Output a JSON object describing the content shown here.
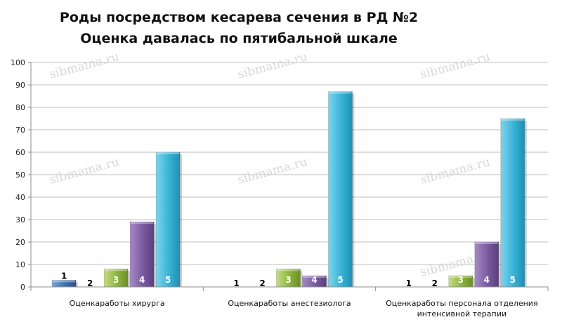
{
  "chart_data": {
    "type": "bar",
    "title": "Роды посредством кесарева сечения в РД №2",
    "subtitle": "Оценка давалась по пятибальной шкале",
    "xlabel": "",
    "ylabel": "",
    "ylim": [
      0,
      100
    ],
    "yticks": [
      0,
      10,
      20,
      30,
      40,
      50,
      60,
      70,
      80,
      90,
      100
    ],
    "grid": true,
    "legend": "none",
    "categories": [
      "Оценкаработы хирурга",
      "Оценкаработы анестезиолога",
      "Оценкаработы персонала отделения интенсивной терапии"
    ],
    "series": [
      {
        "name": "1",
        "color": "#4f81bd",
        "values": [
          3,
          0,
          0
        ]
      },
      {
        "name": "2",
        "color": "#c0504d",
        "values": [
          0,
          0,
          0
        ]
      },
      {
        "name": "3",
        "color": "#9bbb59",
        "values": [
          8,
          8,
          5
        ]
      },
      {
        "name": "4",
        "color": "#8064a2",
        "values": [
          29,
          5,
          20
        ]
      },
      {
        "name": "5",
        "color": "#4bacc6",
        "values": [
          60,
          87,
          75
        ]
      }
    ],
    "watermark": "sibmama.ru"
  }
}
